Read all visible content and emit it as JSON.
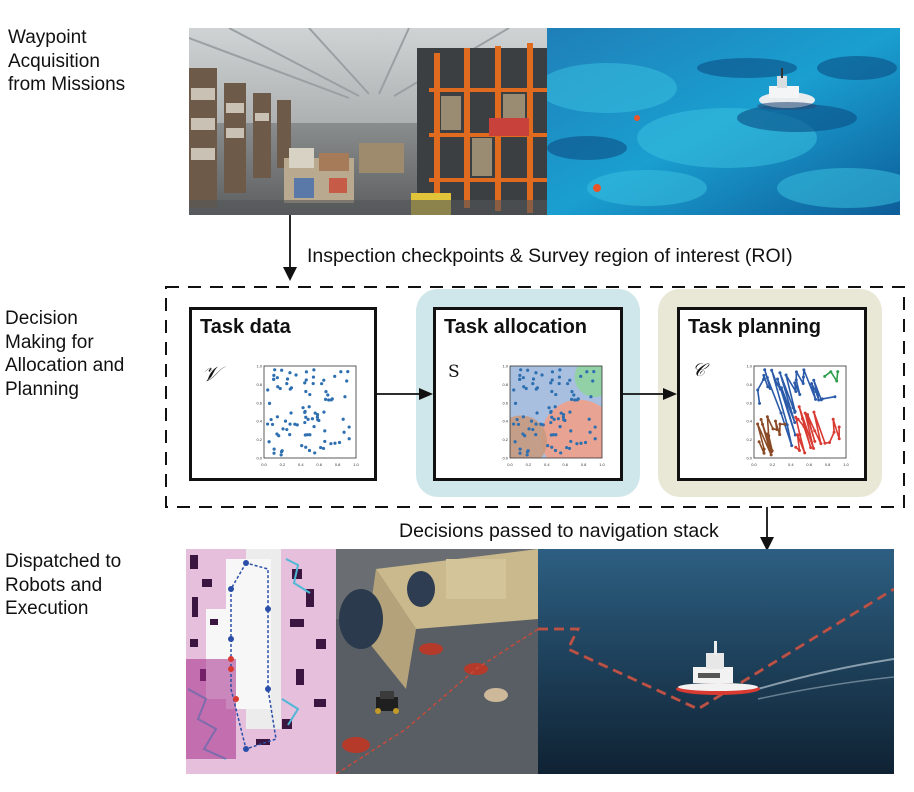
{
  "stages": {
    "acquisition": "Waypoint Acquisition from Missions",
    "acquisition_lines": [
      "Waypoint",
      "Acquisition",
      "from Missions"
    ],
    "decision_lines": [
      "Decision",
      "Making for",
      "Allocation and",
      "Planning"
    ],
    "dispatch_lines": [
      "Dispatched to",
      "Robots and",
      "Execution"
    ]
  },
  "arrows": {
    "inspection": "Inspection checkpoints & Survey region of interest (ROI)",
    "decisions": "Decisions passed to navigation stack"
  },
  "cards": {
    "task_data": {
      "title": "Task data",
      "symbol": "𝒱"
    },
    "task_allocation": {
      "title": "Task allocation",
      "symbol": "S"
    },
    "task_planning": {
      "title": "Task planning",
      "symbol": "𝒞"
    }
  },
  "colors": {
    "allocation_bg": "#cfe6ea",
    "planning_bg": "#e9e8d6",
    "points": "#2e6fb0",
    "region_blue": "#8ca9d6",
    "region_green": "#8fd19e",
    "region_red": "#f0a08a",
    "region_brown": "#c89a80",
    "path_blue": "#2a5aa8",
    "path_green": "#2f9e4a",
    "path_red": "#d93a32",
    "path_brown": "#8a4a26"
  },
  "axis_ticks": {
    "x": [
      "0.0",
      "0.2",
      "0.4",
      "0.6",
      "0.8",
      "1.0"
    ],
    "y": [
      "1.0",
      "0.8",
      "0.6",
      "0.4",
      "0.2",
      "0.0"
    ]
  },
  "photos": {
    "warehouse": "warehouse-photo",
    "sea_survey": "sea-survey-photo",
    "occupancy_map": "occupancy-map",
    "office_robot": "office-robot-photo",
    "boat": "autonomous-boat-photo"
  }
}
